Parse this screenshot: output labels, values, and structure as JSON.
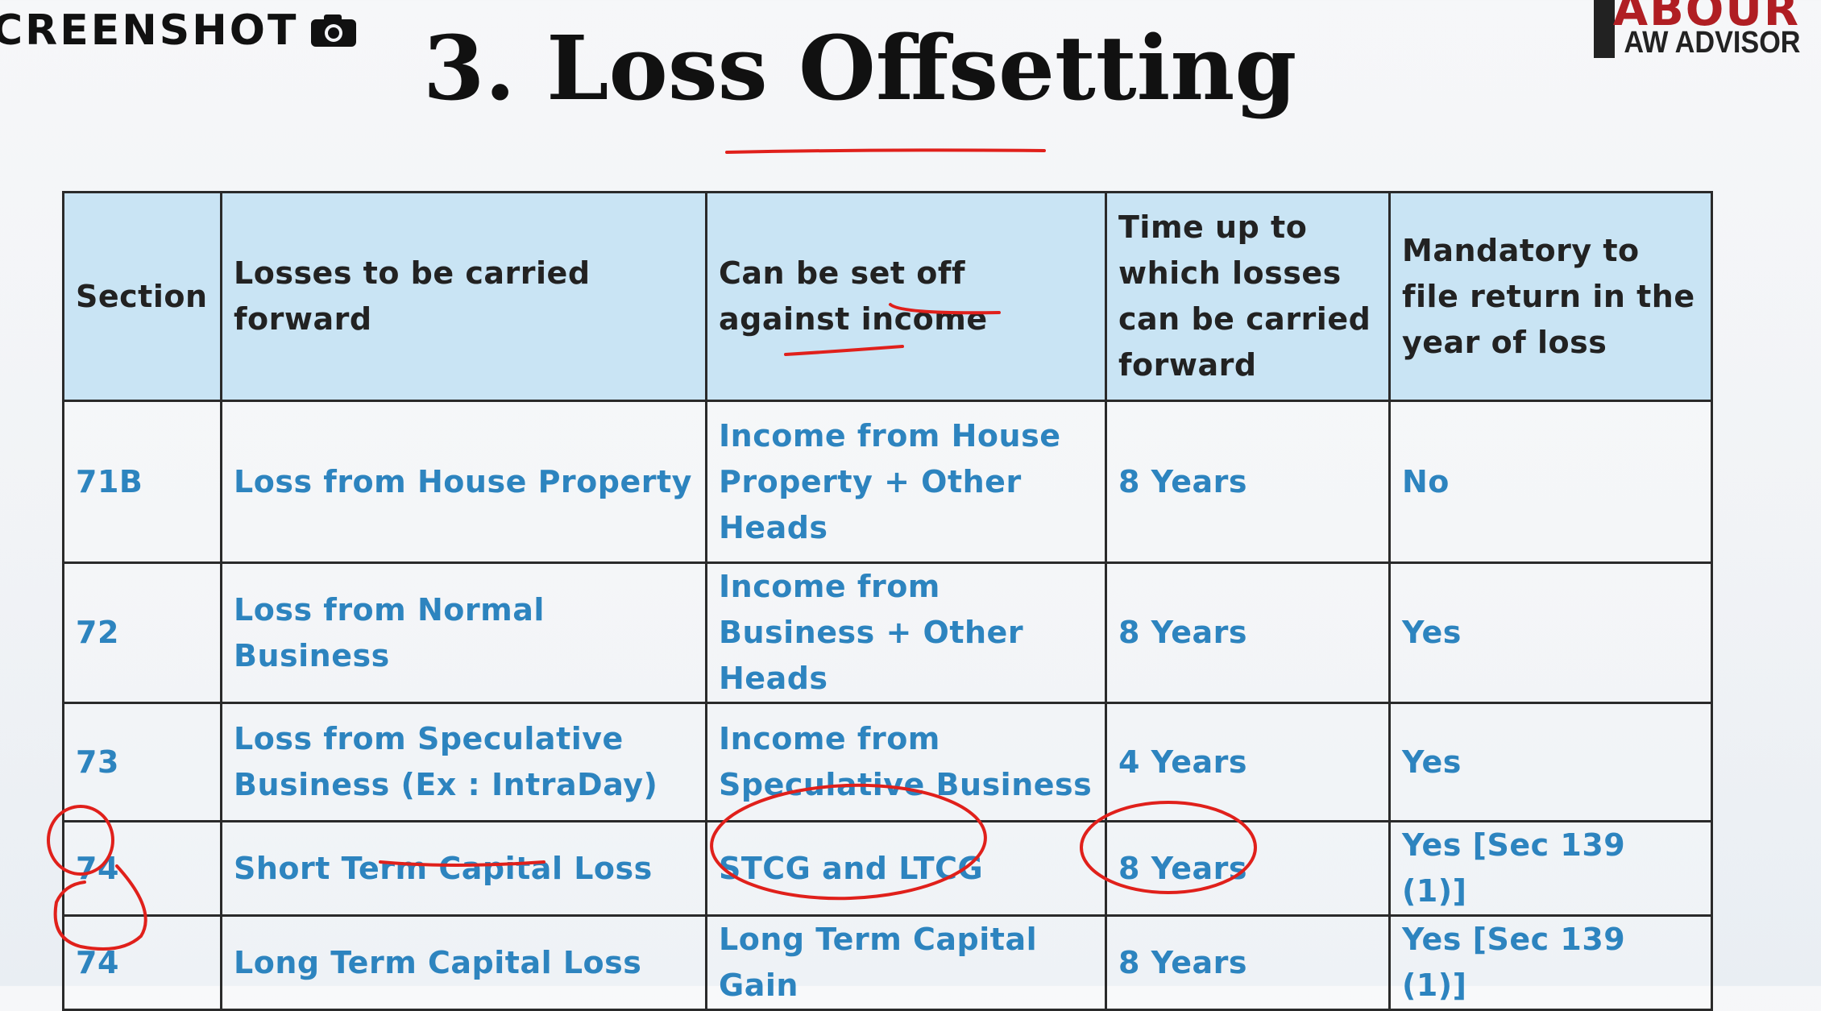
{
  "overlay": {
    "screenshot_label": "CREENSHOT",
    "camera_icon": "camera-icon"
  },
  "title": "3. Loss Offsetting",
  "logo": {
    "top": "ABOUR",
    "bottom": "AW ADVISOR"
  },
  "colors": {
    "header_bg": "#c9e4f4",
    "cell_text": "#2d84bf",
    "annotation": "#e0201b",
    "border": "#2a2a2a"
  },
  "table": {
    "headers": [
      "Section",
      "Losses to be carried forward",
      "Can be set off against income",
      "Time up to which losses can be carried forward",
      "Mandatory to file return in the year of loss"
    ],
    "rows": [
      [
        "71B",
        "Loss from House Property",
        "Income from House Property + Other Heads",
        "8 Years",
        "No"
      ],
      [
        "72",
        "Loss from Normal Business",
        "Income from Business + Other Heads",
        "8 Years",
        "Yes"
      ],
      [
        "73",
        "Loss from Speculative Business (Ex : IntraDay)",
        "Income from Speculative Business",
        "4 Years",
        "Yes"
      ],
      [
        "74",
        "Short Term Capital Loss",
        "STCG and LTCG",
        "8 Years",
        "Yes [Sec 139 (1)]"
      ],
      [
        "74",
        "Long Term Capital Loss",
        "Long Term Capital Gain",
        "8 Years",
        "Yes [Sec 139 (1)]"
      ]
    ]
  }
}
